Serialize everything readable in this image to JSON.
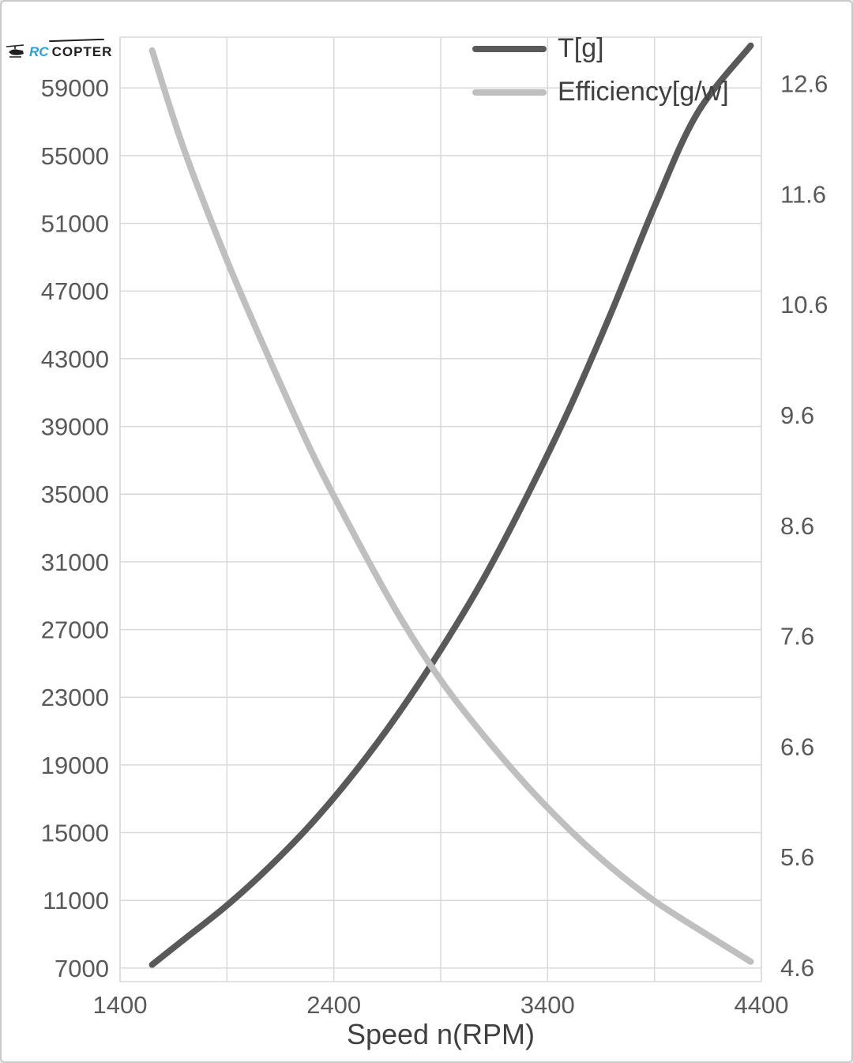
{
  "page": {
    "background": "#ffffff",
    "border_color": "#c9c9c9"
  },
  "logo": {
    "rc": "RC",
    "copter": "COPTER"
  },
  "chart_data": {
    "type": "line",
    "title": "",
    "xlabel": "Speed n(RPM)",
    "ylabel_left": "",
    "ylabel_right": "",
    "legend_position": "top-right",
    "grid": true,
    "grid_color": "#d9d9d9",
    "text_color": "#595959",
    "xlim": [
      1400,
      4400
    ],
    "x_ticks": [
      1400,
      2400,
      3400,
      4400
    ],
    "x_gridlines": [
      1400,
      1900,
      2400,
      2900,
      3400,
      3900,
      4400
    ],
    "left_axis": {
      "lim": [
        6200,
        62000
      ],
      "ticks": [
        7000,
        11000,
        15000,
        19000,
        23000,
        27000,
        31000,
        35000,
        39000,
        43000,
        47000,
        51000,
        55000,
        59000
      ]
    },
    "right_axis": {
      "lim": [
        4.47,
        13.02
      ],
      "ticks": [
        4.6,
        5.6,
        6.6,
        7.6,
        8.6,
        9.6,
        10.6,
        11.6,
        12.6
      ]
    },
    "series": [
      {
        "id": "thrust-curve",
        "name": "T[g]",
        "axis": "left",
        "color": "#595959",
        "x": [
          1550,
          1700,
          1900,
          2100,
          2300,
          2500,
          2700,
          2900,
          3100,
          3300,
          3500,
          3700,
          3900,
          4100,
          4350
        ],
        "values": [
          7200,
          8700,
          10700,
          13000,
          15600,
          18600,
          22000,
          25800,
          30000,
          34800,
          40000,
          45800,
          52000,
          57500,
          61500
        ]
      },
      {
        "id": "efficiency-curve",
        "name": "Efficiency[g/w]",
        "axis": "right",
        "color": "#bfbfbf",
        "x": [
          1550,
          1700,
          1900,
          2100,
          2300,
          2500,
          2700,
          2900,
          3100,
          3300,
          3500,
          3700,
          3900,
          4100,
          4350
        ],
        "values": [
          12.9,
          12.0,
          11.0,
          10.1,
          9.25,
          8.5,
          7.8,
          7.2,
          6.7,
          6.25,
          5.85,
          5.5,
          5.2,
          4.95,
          4.65
        ]
      }
    ]
  }
}
